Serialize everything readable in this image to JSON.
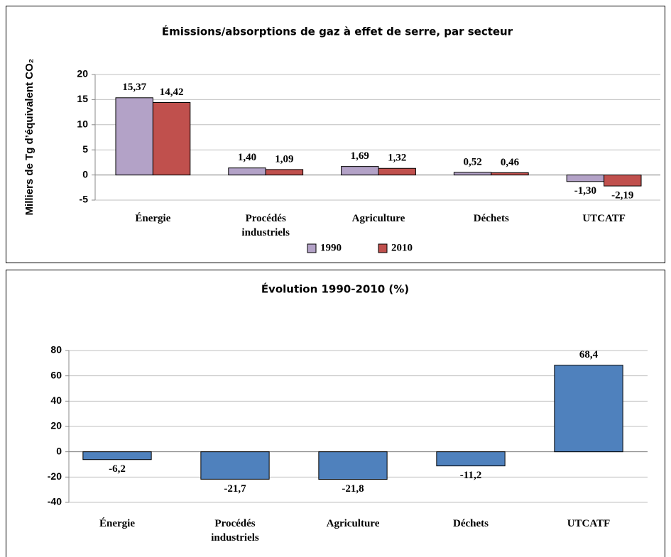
{
  "chart_data": [
    {
      "type": "bar",
      "title": "Émissions/absorptions de gaz à effet de serre, par secteur",
      "y_label": "Milliers de Tg d’équivalent CO₂",
      "categories": [
        "Énergie",
        "Procédés industriels",
        "Agriculture",
        "Déchets",
        "UTCATF"
      ],
      "series": [
        {
          "name": "1990",
          "color": "#b3a2c7",
          "values": [
            15.37,
            1.4,
            1.69,
            0.52,
            -1.3
          ],
          "value_labels": [
            "15,37",
            "1,40",
            "1,69",
            "0,52",
            "-1,30"
          ]
        },
        {
          "name": "2010",
          "color": "#c0504d",
          "values": [
            14.42,
            1.09,
            1.32,
            0.46,
            -2.19
          ],
          "value_labels": [
            "14,42",
            "1,09",
            "1,32",
            "0,46",
            "-2,19"
          ]
        }
      ],
      "ylim": [
        -5,
        20
      ],
      "yticks": [
        -5,
        0,
        5,
        10,
        15,
        20
      ],
      "grid": true,
      "legend": "bottom"
    },
    {
      "type": "bar",
      "title": "Évolution 1990-2010 (%)",
      "categories": [
        "Énergie",
        "Procédés industriels",
        "Agriculture",
        "Déchets",
        "UTCATF"
      ],
      "values": [
        -6.2,
        -21.7,
        -21.8,
        -11.2,
        68.4
      ],
      "value_labels": [
        "-6,2",
        "-21,7",
        "-21,8",
        "-11,2",
        "68,4"
      ],
      "color": "#4f81bd",
      "ylim": [
        -40,
        80
      ],
      "yticks": [
        -40,
        -20,
        0,
        20,
        40,
        60,
        80
      ],
      "grid": true
    }
  ]
}
